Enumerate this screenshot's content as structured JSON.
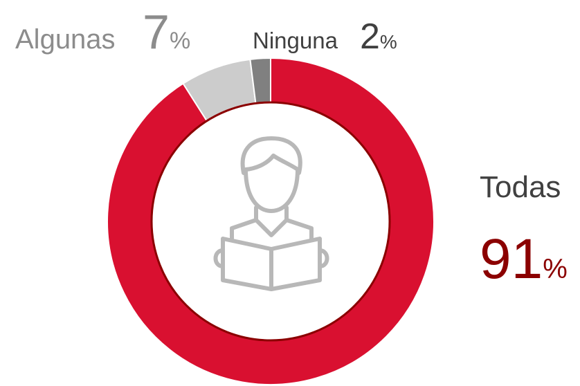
{
  "chart_data": {
    "type": "donut",
    "categories": [
      "Todas",
      "Algunas",
      "Ninguna"
    ],
    "values": [
      91,
      7,
      2
    ],
    "value_labels": [
      "91%",
      "7%",
      "2%"
    ],
    "colors": [
      "#d91030",
      "#cccccc",
      "#808080"
    ]
  }
}
